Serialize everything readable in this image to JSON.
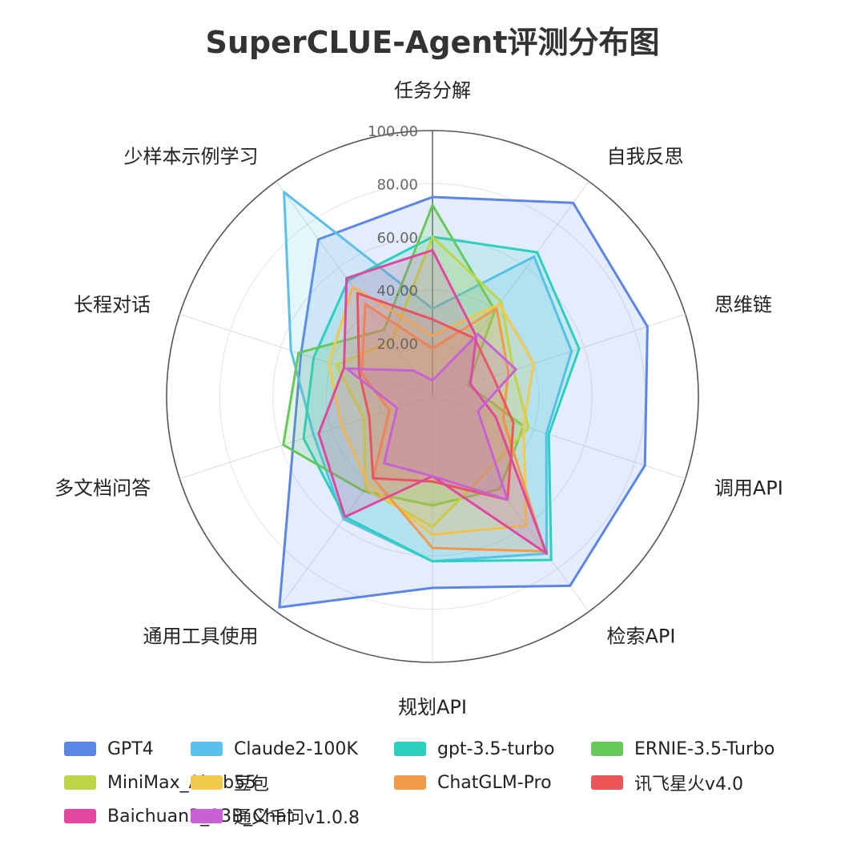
{
  "chart_data": {
    "type": "radar",
    "title": "SuperCLUE-Agent评测分布图",
    "axes": [
      "任务分解",
      "自我反思",
      "思维链",
      "调用API",
      "检索API",
      "规划API",
      "通用工具使用",
      "多文档问答",
      "长程对话",
      "少样本示例学习"
    ],
    "rlim": [
      0,
      100
    ],
    "ticks": [
      "20.00",
      "40.00",
      "60.00",
      "80.00",
      "100.00"
    ],
    "tick_values": [
      20,
      40,
      60,
      80,
      100
    ],
    "grid": true,
    "legend_position": "bottom",
    "series": [
      {
        "name": "GPT4",
        "color": "#5b86e5",
        "fill": true,
        "values": [
          75,
          90,
          85,
          84,
          88,
          72,
          98,
          55,
          52,
          73
        ]
      },
      {
        "name": "Claude2-100K",
        "color": "#5bc0eb",
        "fill": true,
        "values": [
          33,
          65,
          55,
          45,
          73,
          62,
          57,
          47,
          56,
          95
        ]
      },
      {
        "name": "gpt-3.5-turbo",
        "color": "#2bd0c0",
        "fill": true,
        "values": [
          60,
          67,
          58,
          46,
          76,
          62,
          56,
          51,
          47,
          54
        ]
      },
      {
        "name": "ERNIE-3.5-Turbo",
        "color": "#66c95a",
        "fill": true,
        "values": [
          72,
          40,
          14,
          36,
          43,
          41,
          44,
          59,
          53,
          31
        ]
      },
      {
        "name": "MiniMax_Abab55",
        "color": "#bcd645",
        "fill": true,
        "values": [
          60,
          44,
          32,
          38,
          35,
          49,
          43,
          27,
          38,
          26
        ]
      },
      {
        "name": "豆包",
        "color": "#f2c94c",
        "fill": true,
        "values": [
          23,
          43,
          40,
          36,
          60,
          52,
          41,
          36,
          41,
          51
        ]
      },
      {
        "name": "ChatGLM-Pro",
        "color": "#f2994a",
        "fill": true,
        "values": [
          18,
          41,
          30,
          28,
          72,
          57,
          38,
          17,
          28,
          43
        ]
      },
      {
        "name": "讯飞星火v4.0",
        "color": "#eb5757",
        "fill": true,
        "values": [
          29,
          27,
          24,
          32,
          48,
          32,
          38,
          25,
          29,
          48
        ]
      },
      {
        "name": "Baichuan2_13B_Chat",
        "color": "#e0479e",
        "fill": true,
        "values": [
          55,
          28,
          15,
          25,
          73,
          30,
          56,
          45,
          35,
          55
        ]
      },
      {
        "name": "通义千问v1.0.8",
        "color": "#c961d6",
        "fill": true,
        "values": [
          6,
          29,
          33,
          18,
          48,
          30,
          31,
          14,
          34,
          12
        ]
      }
    ]
  }
}
